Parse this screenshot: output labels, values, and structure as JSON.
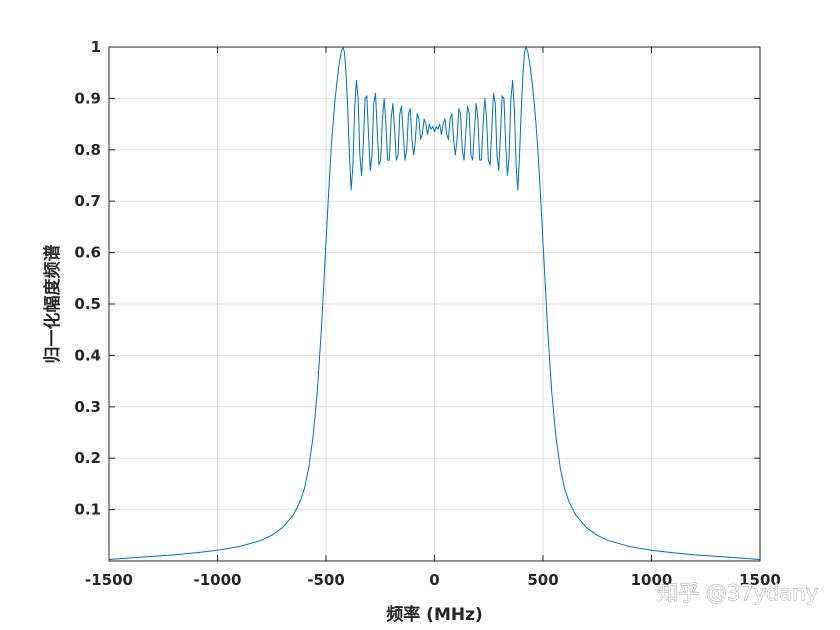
{
  "watermark": "知乎 @37ydany",
  "chart_data": {
    "type": "line",
    "title": "",
    "xlabel": "频率 (MHz)",
    "ylabel": "归一化幅度频谱",
    "xlim": [
      -1500,
      1500
    ],
    "ylim": [
      0,
      1
    ],
    "xticks": [
      -1500,
      -1000,
      -500,
      0,
      500,
      1000,
      1500
    ],
    "yticks": [
      0.1,
      0.2,
      0.3,
      0.4,
      0.5,
      0.6,
      0.7,
      0.8,
      0.9,
      1
    ],
    "xtick_labels": [
      "-1500",
      "-1000",
      "-500",
      "0",
      "500",
      "1000",
      "1500"
    ],
    "ytick_labels": [
      "0.1",
      "0.2",
      "0.3",
      "0.4",
      "0.5",
      "0.6",
      "0.7",
      "0.8",
      "0.9",
      "1"
    ],
    "grid": true,
    "box": true,
    "series": [
      {
        "color": "#0072BD",
        "x": [
          -1500,
          -1400,
          -1300,
          -1200,
          -1100,
          -1000,
          -900,
          -800,
          -750,
          -700,
          -650,
          -620,
          -600,
          -580,
          -560,
          -540,
          -520,
          -505,
          -490,
          -475,
          -460,
          -450,
          -440,
          -430,
          -422,
          -415,
          -408,
          -400,
          -392,
          -384,
          -376,
          -368,
          -360,
          -352,
          -344,
          -336,
          -328,
          -320,
          -312,
          -304,
          -296,
          -288,
          -280,
          -272,
          -264,
          -256,
          -248,
          -240,
          -232,
          -224,
          -216,
          -208,
          -200,
          -192,
          -184,
          -176,
          -168,
          -160,
          -152,
          -144,
          -136,
          -128,
          -120,
          -112,
          -104,
          -96,
          -88,
          -80,
          -72,
          -64,
          -56,
          -48,
          -40,
          -32,
          -24,
          -16,
          -8,
          0,
          8,
          16,
          24,
          32,
          40,
          48,
          56,
          64,
          72,
          80,
          88,
          96,
          104,
          112,
          120,
          128,
          136,
          144,
          152,
          160,
          168,
          176,
          184,
          192,
          200,
          208,
          216,
          224,
          232,
          240,
          248,
          256,
          264,
          272,
          280,
          288,
          296,
          304,
          312,
          320,
          328,
          336,
          344,
          352,
          360,
          368,
          376,
          384,
          392,
          400,
          408,
          415,
          422,
          430,
          440,
          450,
          460,
          475,
          490,
          505,
          520,
          540,
          560,
          580,
          600,
          620,
          650,
          700,
          750,
          800,
          900,
          1000,
          1100,
          1200,
          1300,
          1400,
          1500
        ],
        "y": [
          0.003,
          0.006,
          0.009,
          0.012,
          0.016,
          0.021,
          0.028,
          0.04,
          0.05,
          0.065,
          0.09,
          0.115,
          0.14,
          0.18,
          0.24,
          0.33,
          0.46,
          0.58,
          0.7,
          0.81,
          0.89,
          0.93,
          0.965,
          0.99,
          1.0,
          0.99,
          0.95,
          0.88,
          0.79,
          0.722,
          0.77,
          0.88,
          0.935,
          0.9,
          0.79,
          0.75,
          0.81,
          0.9,
          0.905,
          0.83,
          0.76,
          0.79,
          0.89,
          0.91,
          0.84,
          0.77,
          0.78,
          0.86,
          0.9,
          0.85,
          0.78,
          0.78,
          0.86,
          0.89,
          0.84,
          0.78,
          0.79,
          0.87,
          0.885,
          0.83,
          0.78,
          0.8,
          0.87,
          0.88,
          0.82,
          0.79,
          0.82,
          0.87,
          0.86,
          0.82,
          0.83,
          0.86,
          0.85,
          0.83,
          0.85,
          0.84,
          0.845,
          0.835,
          0.845,
          0.84,
          0.85,
          0.83,
          0.85,
          0.86,
          0.83,
          0.82,
          0.86,
          0.87,
          0.82,
          0.79,
          0.82,
          0.88,
          0.87,
          0.8,
          0.78,
          0.83,
          0.885,
          0.87,
          0.79,
          0.78,
          0.84,
          0.89,
          0.86,
          0.78,
          0.78,
          0.85,
          0.9,
          0.86,
          0.78,
          0.77,
          0.84,
          0.91,
          0.89,
          0.79,
          0.76,
          0.83,
          0.905,
          0.9,
          0.81,
          0.75,
          0.79,
          0.9,
          0.935,
          0.88,
          0.77,
          0.722,
          0.79,
          0.88,
          0.95,
          0.99,
          1.0,
          0.99,
          0.965,
          0.93,
          0.89,
          0.81,
          0.7,
          0.58,
          0.46,
          0.33,
          0.24,
          0.18,
          0.14,
          0.115,
          0.09,
          0.065,
          0.05,
          0.04,
          0.028,
          0.021,
          0.016,
          0.012,
          0.009,
          0.006,
          0.003
        ]
      }
    ]
  }
}
